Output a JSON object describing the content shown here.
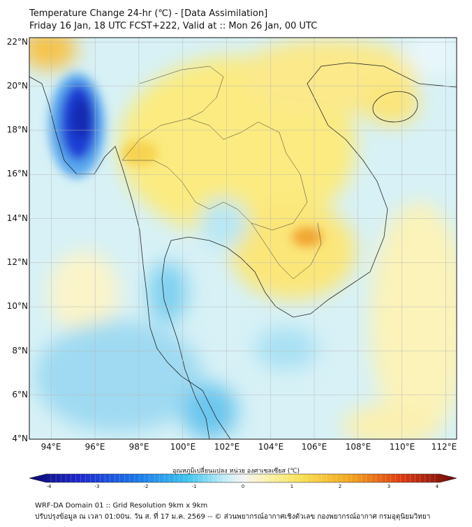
{
  "header": {
    "title_line1": "Temperature Change 24-hr (℃) - [Data Assimilation]",
    "title_line2": "Friday 16 Jan, 18 UTC FCST+222, Valid at :: Mon 26 Jan, 00 UTC"
  },
  "map": {
    "lat_labels": [
      "22°N",
      "20°N",
      "18°N",
      "16°N",
      "14°N",
      "12°N",
      "10°N",
      "8°N",
      "6°N",
      "4°N"
    ],
    "lon_labels": [
      "94°E",
      "96°E",
      "98°E",
      "100°E",
      "102°E",
      "104°E",
      "106°E",
      "108°E",
      "110°E",
      "112°E"
    ],
    "lon_range": [
      93,
      112.5
    ],
    "lat_range": [
      4,
      22.2
    ],
    "background_color": "#d7f1f6"
  },
  "colorbar": {
    "title": "อุณหภูมิเปลี่ยนแปลง หน่วย องศาเซลเซียส (℃)",
    "ticks": [
      "-4",
      "-3",
      "-2",
      "-1",
      "0",
      "1",
      "2",
      "3",
      "4"
    ],
    "range": [
      -4,
      4
    ]
  },
  "footer": {
    "line1": "WRF-DA Domain 01 :: Grid Resolution 9km x 9km",
    "line2": "ปรับปรุงข้อมูล ณ เวลา 01:00น. วัน ส. ที่ 17 ม.ค. 2569 -- © ส่วนพยากรณ์อากาศเชิงตัวเลข กองพยากรณ์อากาศ กรมอุตุนิยมวิทยา"
  }
}
